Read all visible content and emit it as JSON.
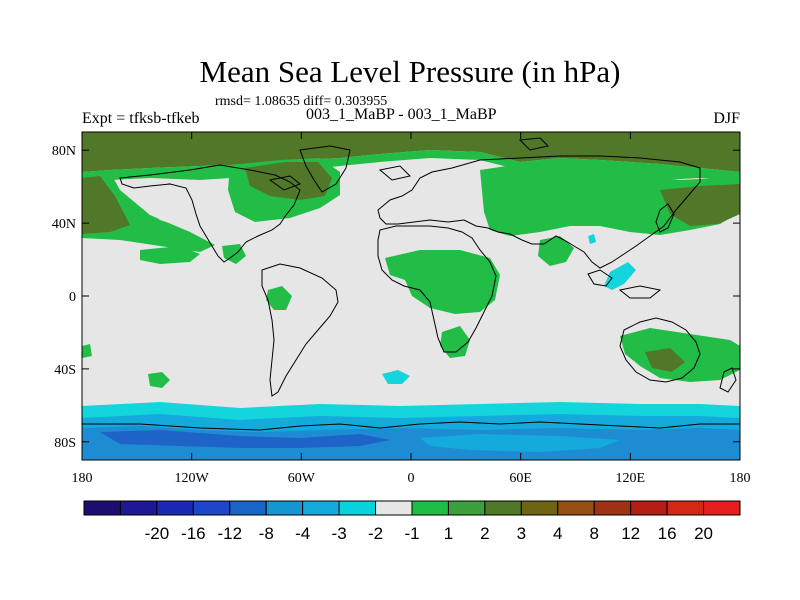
{
  "title": "Mean Sea Level Pressure (in hPa)",
  "stats_line": "rmsd= 1.08635 diff= 0.303955",
  "left_label": "Expt = tfksb-tfkeb",
  "center_label": "003_1_MaBP - 003_1_MaBP",
  "right_label": "DJF",
  "axes": {
    "x_ticks": [
      {
        "value": -180,
        "label": "180"
      },
      {
        "value": -120,
        "label": "120W"
      },
      {
        "value": -60,
        "label": "60W"
      },
      {
        "value": 0,
        "label": "0"
      },
      {
        "value": 60,
        "label": "60E"
      },
      {
        "value": 120,
        "label": "120E"
      },
      {
        "value": 180,
        "label": "180"
      }
    ],
    "y_ticks": [
      {
        "value": 80,
        "label": "80N"
      },
      {
        "value": 40,
        "label": "40N"
      },
      {
        "value": 0,
        "label": "0"
      },
      {
        "value": -40,
        "label": "40S"
      },
      {
        "value": -80,
        "label": "80S"
      }
    ],
    "xlim": [
      -180,
      180
    ],
    "ylim": [
      -90,
      90
    ]
  },
  "colorbar": {
    "colors": [
      "#1e0c6e",
      "#1e1896",
      "#1a2ab4",
      "#1e46c8",
      "#1864c8",
      "#1496d2",
      "#14aadc",
      "#0ad2dc",
      "#e6e6e6",
      "#1ebe46",
      "#3ca03c",
      "#507828",
      "#6e6414",
      "#965014",
      "#a03214",
      "#b41e14",
      "#d22814",
      "#e61e1e"
    ],
    "labels": [
      "-20",
      "-16",
      "-12",
      "-8",
      "-4",
      "-3",
      "-2",
      "-1",
      "1",
      "2",
      "3",
      "4",
      "8",
      "12",
      "16",
      "20"
    ]
  },
  "colors": {
    "neutral": "#e6e6e6",
    "green": "#22bd47",
    "olive": "#507828",
    "cyan": "#14d4dc",
    "sky": "#14aadc",
    "blue": "#1e8cd2",
    "mid_blue": "#1e64c8"
  }
}
